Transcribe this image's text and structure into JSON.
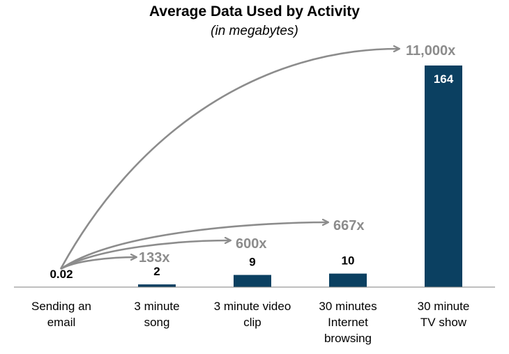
{
  "chart_data": {
    "type": "bar",
    "title": "Average Data Used by Activity",
    "subtitle": "(in megabytes)",
    "xlabel": "",
    "ylabel": "",
    "ylim": [
      0,
      164
    ],
    "grid": false,
    "categories": [
      [
        "Sending an",
        "email"
      ],
      [
        "3 minute",
        "song"
      ],
      [
        "3 minute video",
        "clip"
      ],
      [
        "30 minutes",
        "Internet",
        "browsing"
      ],
      [
        "30 minute",
        "TV show"
      ]
    ],
    "values": [
      0.02,
      2,
      9,
      10,
      164
    ],
    "value_labels": [
      "0.02",
      "2",
      "9",
      "10",
      "164"
    ],
    "annotations": [
      {
        "target": 1,
        "label": "133x"
      },
      {
        "target": 2,
        "label": "600x"
      },
      {
        "target": 3,
        "label": "667x"
      },
      {
        "target": 4,
        "label": "11,000x"
      }
    ],
    "colors": {
      "bar": "#0b4061",
      "arrow": "#8c8c8c",
      "multiplier_text": "#8c8c8c",
      "axis": "#7f7f7f"
    }
  }
}
